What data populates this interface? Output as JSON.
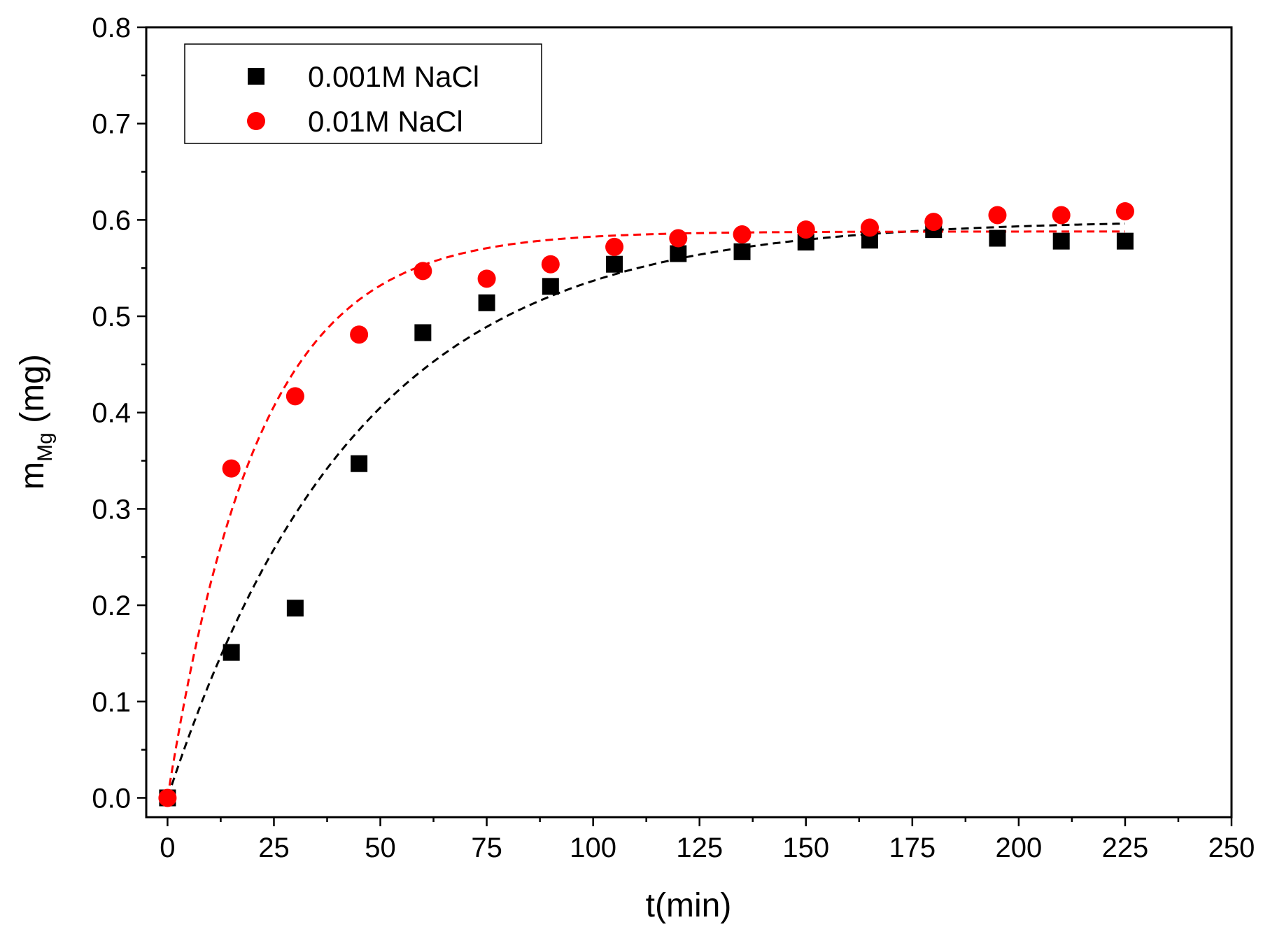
{
  "chart_data": {
    "type": "scatter",
    "xlabel": "t(min)",
    "ylabel": {
      "main": "m",
      "subscript": "Mg",
      "unit": " (mg)"
    },
    "xlim": [
      -5,
      250
    ],
    "ylim": [
      -0.02,
      0.8
    ],
    "xticks": [
      0,
      25,
      50,
      75,
      100,
      125,
      150,
      175,
      200,
      225,
      250
    ],
    "yticks": [
      0.0,
      0.1,
      0.2,
      0.3,
      0.4,
      0.5,
      0.6,
      0.7,
      0.8
    ],
    "xtick_labels": [
      "0",
      "25",
      "50",
      "75",
      "100",
      "125",
      "150",
      "175",
      "200",
      "225",
      "250"
    ],
    "ytick_labels": [
      "0.0",
      "0.1",
      "0.2",
      "0.3",
      "0.4",
      "0.5",
      "0.6",
      "0.7",
      "0.8"
    ],
    "legend_position": "top-left",
    "series": [
      {
        "name": "0.001M NaCl",
        "marker": "square",
        "color": "#000000",
        "x": [
          0,
          15,
          30,
          45,
          60,
          75,
          90,
          105,
          120,
          135,
          150,
          165,
          180,
          195,
          210,
          225
        ],
        "y": [
          0.0,
          0.151,
          0.197,
          0.347,
          0.483,
          0.514,
          0.531,
          0.554,
          0.565,
          0.567,
          0.577,
          0.579,
          0.59,
          0.581,
          0.578,
          0.578
        ],
        "fit": {
          "style": "dashed",
          "model": "qe*(1-exp(-k*t))",
          "qe": 0.6,
          "k": 0.0225,
          "x0": 1,
          "x1": 225
        }
      },
      {
        "name": "0.01M NaCl",
        "marker": "circle",
        "color": "#ff0000",
        "x": [
          0,
          15,
          30,
          45,
          60,
          75,
          90,
          105,
          120,
          135,
          150,
          165,
          180,
          195,
          210,
          225
        ],
        "y": [
          0.0,
          0.342,
          0.417,
          0.481,
          0.547,
          0.539,
          0.554,
          0.572,
          0.581,
          0.585,
          0.59,
          0.592,
          0.598,
          0.605,
          0.605,
          0.609
        ],
        "fit": {
          "style": "dashed",
          "model": "qe*(1-exp(-k*t))",
          "qe": 0.588,
          "k": 0.047,
          "x0": 0,
          "x1": 225
        }
      }
    ]
  }
}
